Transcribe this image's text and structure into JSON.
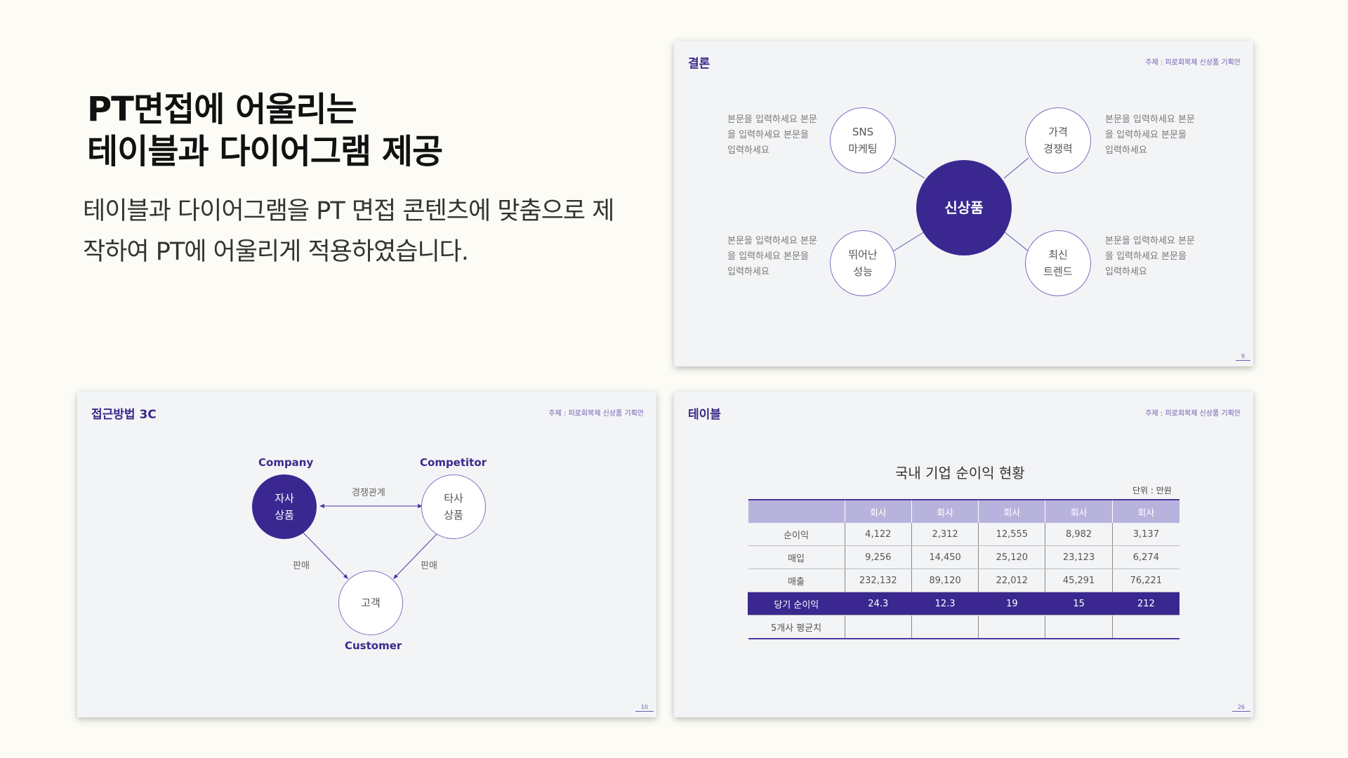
{
  "headline": {
    "line1": "PT면접에 어울리는",
    "line2": "테이블과 다이어그램 제공"
  },
  "description": {
    "line1": "테이블과 다이어그램을 PT 면접 콘텐츠에 맞춤으로 제",
    "line2": "작하여 PT에 어울리게 적용하였습니다."
  },
  "slide1": {
    "title": "결론",
    "topic": "주제 : 피로회복제 신상품 기획안",
    "page": "9",
    "center": "신상품",
    "nodes": [
      {
        "line1": "SNS",
        "line2": "마케팅"
      },
      {
        "line1": "가격",
        "line2": "경쟁력"
      },
      {
        "line1": "뛰어난",
        "line2": "성능"
      },
      {
        "line1": "최신",
        "line2": "트렌드"
      }
    ],
    "notes": [
      "본문을 입력하세요 본문을 입력하세요 본문을 입력하세요",
      "본문을 입력하세요 본문을 입력하세요 본문을 입력하세요",
      "본문을 입력하세요 본문을 입력하세요 본문을 입력하세요",
      "본문을 입력하세요 본문을 입력하세요 본문을 입력하세요"
    ]
  },
  "slide2": {
    "title": "접근방법 3C",
    "topic": "주제 : 피로회복제 신상품 기획안",
    "page": "10",
    "company": {
      "heading": "Company",
      "line1": "자사",
      "line2": "상품"
    },
    "competitor": {
      "heading": "Competitor",
      "line1": "타사",
      "line2": "상품"
    },
    "customer": {
      "heading": "Customer",
      "label": "고객"
    },
    "edge_compete": "경쟁관계",
    "edge_sell_left": "판매",
    "edge_sell_right": "판매"
  },
  "slide3": {
    "title": "테이블",
    "topic": "주제 : 피로회복제 신상품 기획안",
    "page": "26",
    "table_title": "국내 기업 순이익 현황",
    "unit": "단위 : 만원",
    "columns": [
      "",
      "회사",
      "회사",
      "회사",
      "회사",
      "회사"
    ],
    "rows": [
      [
        "순이익",
        "4,122",
        "2,312",
        "12,555",
        "8,982",
        "3,137"
      ],
      [
        "매입",
        "9,256",
        "14,450",
        "25,120",
        "23,123",
        "6,274"
      ],
      [
        "매출",
        "232,132",
        "89,120",
        "22,012",
        "45,291",
        "76,221"
      ],
      [
        "당기 순이익",
        "24.3",
        "12.3",
        "19",
        "15",
        "212"
      ],
      [
        "5개사 평균치",
        "",
        "",
        "",
        "",
        ""
      ]
    ]
  },
  "colors": {
    "accent": "#3a2890",
    "header_fill": "#b8b3dc",
    "background": "#fcfbf5",
    "slide_bg": "#f3f4f6"
  }
}
